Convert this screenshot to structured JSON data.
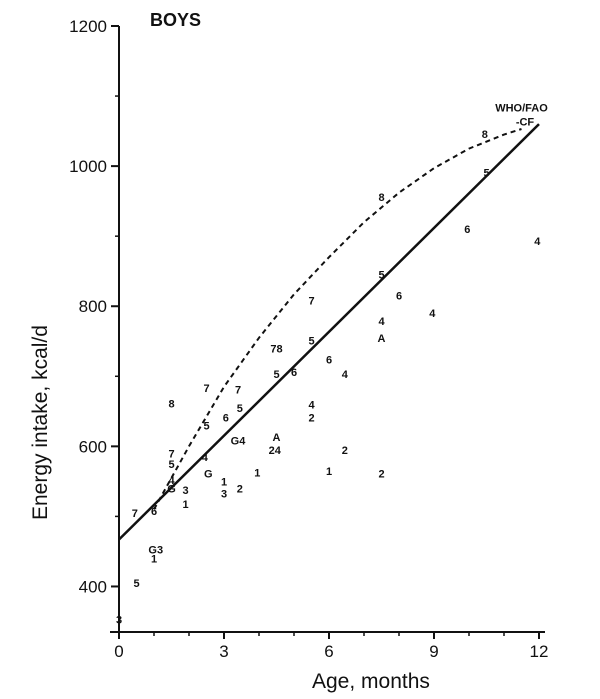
{
  "chart_data": {
    "type": "scatter",
    "title": "BOYS",
    "xlabel": "Age, months",
    "ylabel": "Energy intake, kcal/d",
    "xlim": [
      0,
      12
    ],
    "ylim": [
      335,
      1200
    ],
    "xticks": [
      "0",
      "3",
      "6",
      "9",
      "12"
    ],
    "xtick_values": [
      0,
      3,
      6,
      9,
      12
    ],
    "yticks": [
      "400",
      "600",
      "800",
      "1000",
      "1200"
    ],
    "ytick_values": [
      400,
      600,
      800,
      1000,
      1200
    ],
    "grid": false,
    "annotations": [
      {
        "text": "WHO/FAO",
        "x": 11.5,
        "y": 1078
      },
      {
        "text": "-CF",
        "x": 11.6,
        "y": 1058
      }
    ],
    "points": [
      {
        "label": "7",
        "x": 0.45,
        "y": 505
      },
      {
        "label": "5",
        "x": 0.5,
        "y": 405
      },
      {
        "label": "3",
        "x": 0.0,
        "y": 353
      },
      {
        "label": "6",
        "x": 1.0,
        "y": 508
      },
      {
        "label": "G3",
        "x": 1.05,
        "y": 453
      },
      {
        "label": "1",
        "x": 1.0,
        "y": 440
      },
      {
        "label": "8",
        "x": 1.5,
        "y": 661
      },
      {
        "label": "7",
        "x": 1.5,
        "y": 590
      },
      {
        "label": "5",
        "x": 1.5,
        "y": 575
      },
      {
        "label": "4",
        "x": 1.5,
        "y": 552
      },
      {
        "label": "G",
        "x": 1.5,
        "y": 540
      },
      {
        "label": "3",
        "x": 1.9,
        "y": 538
      },
      {
        "label": "1",
        "x": 1.9,
        "y": 518
      },
      {
        "label": "7",
        "x": 2.5,
        "y": 683
      },
      {
        "label": "5",
        "x": 2.5,
        "y": 630
      },
      {
        "label": "4",
        "x": 2.45,
        "y": 585
      },
      {
        "label": "G",
        "x": 2.55,
        "y": 561
      },
      {
        "label": "6",
        "x": 3.05,
        "y": 641
      },
      {
        "label": "1",
        "x": 3.0,
        "y": 550
      },
      {
        "label": "3",
        "x": 3.0,
        "y": 533
      },
      {
        "label": "G4",
        "x": 3.4,
        "y": 608
      },
      {
        "label": "7",
        "x": 3.4,
        "y": 681
      },
      {
        "label": "5",
        "x": 3.45,
        "y": 655
      },
      {
        "label": "2",
        "x": 3.45,
        "y": 540
      },
      {
        "label": "1",
        "x": 3.95,
        "y": 563
      },
      {
        "label": "78",
        "x": 4.5,
        "y": 740
      },
      {
        "label": "5",
        "x": 4.5,
        "y": 703
      },
      {
        "label": "A",
        "x": 4.5,
        "y": 613
      },
      {
        "label": "24",
        "x": 4.45,
        "y": 595
      },
      {
        "label": "6",
        "x": 5.0,
        "y": 706
      },
      {
        "label": "7",
        "x": 5.5,
        "y": 808
      },
      {
        "label": "5",
        "x": 5.5,
        "y": 751
      },
      {
        "label": "4",
        "x": 5.5,
        "y": 660
      },
      {
        "label": "2",
        "x": 5.5,
        "y": 641
      },
      {
        "label": "6",
        "x": 6.0,
        "y": 724
      },
      {
        "label": "1",
        "x": 6.0,
        "y": 565
      },
      {
        "label": "4",
        "x": 6.45,
        "y": 703
      },
      {
        "label": "2",
        "x": 6.45,
        "y": 595
      },
      {
        "label": "8",
        "x": 7.5,
        "y": 956
      },
      {
        "label": "5",
        "x": 7.5,
        "y": 845
      },
      {
        "label": "4",
        "x": 7.5,
        "y": 779
      },
      {
        "label": "A",
        "x": 7.5,
        "y": 755
      },
      {
        "label": "2",
        "x": 7.5,
        "y": 561
      },
      {
        "label": "6",
        "x": 8.0,
        "y": 815
      },
      {
        "label": "4",
        "x": 8.95,
        "y": 790
      },
      {
        "label": "6",
        "x": 9.95,
        "y": 910
      },
      {
        "label": "8",
        "x": 10.45,
        "y": 1046
      },
      {
        "label": "5",
        "x": 10.5,
        "y": 991
      },
      {
        "label": "4",
        "x": 11.95,
        "y": 893
      }
    ],
    "series": [
      {
        "style": "solid",
        "x": [
          0.0,
          12.0
        ],
        "y": [
          467,
          1060
        ]
      },
      {
        "style": "dashed",
        "x": [
          1.0,
          2.0,
          3.0,
          4.0,
          5.0,
          6.0,
          7.0,
          8.0,
          9.0,
          10.0,
          11.0,
          11.5
        ],
        "y": [
          510,
          600,
          685,
          755,
          817,
          870,
          920,
          962,
          997,
          1025,
          1045,
          1053
        ]
      }
    ]
  }
}
